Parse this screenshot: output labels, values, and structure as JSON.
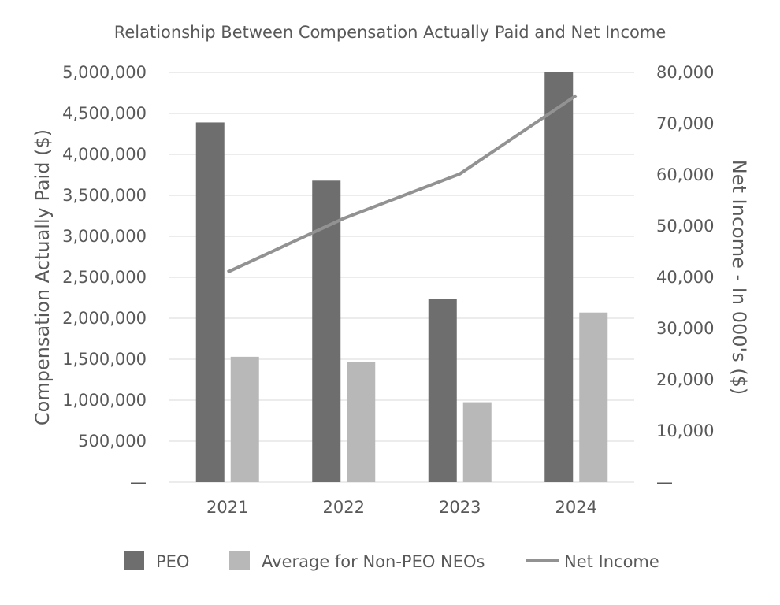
{
  "chart_data": {
    "type": "bar",
    "title": "Relationship Between Compensation Actually Paid and Net Income",
    "categories": [
      "2021",
      "2022",
      "2023",
      "2024"
    ],
    "ylabel": "Compensation Actually Paid ($)",
    "y2label": "Net Income - In 000's ($)",
    "ylim": [
      0,
      5000000
    ],
    "y2lim": [
      0,
      80000
    ],
    "yticks": [
      "—",
      "500,000",
      "1,000,000",
      "1,500,000",
      "2,000,000",
      "2,500,000",
      "3,000,000",
      "3,500,000",
      "4,000,000",
      "4,500,000",
      "5,000,000"
    ],
    "y2ticks": [
      "—",
      "10,000",
      "20,000",
      "30,000",
      "40,000",
      "50,000",
      "60,000",
      "70,000",
      "80,000"
    ],
    "grid": true,
    "legend": "bottom",
    "series": [
      {
        "name": "PEO",
        "kind": "bar",
        "axis": "left",
        "color": "#6e6e6e",
        "values": [
          4390000,
          3680000,
          2240000,
          5000000
        ]
      },
      {
        "name": "Average for Non-PEO NEOs",
        "kind": "bar",
        "axis": "left",
        "color": "#b8b8b8",
        "values": [
          1530000,
          1470000,
          975000,
          2070000
        ]
      },
      {
        "name": "Net Income",
        "kind": "line",
        "axis": "right",
        "color": "#929292",
        "values": [
          41000,
          51500,
          60200,
          75500
        ]
      }
    ]
  }
}
